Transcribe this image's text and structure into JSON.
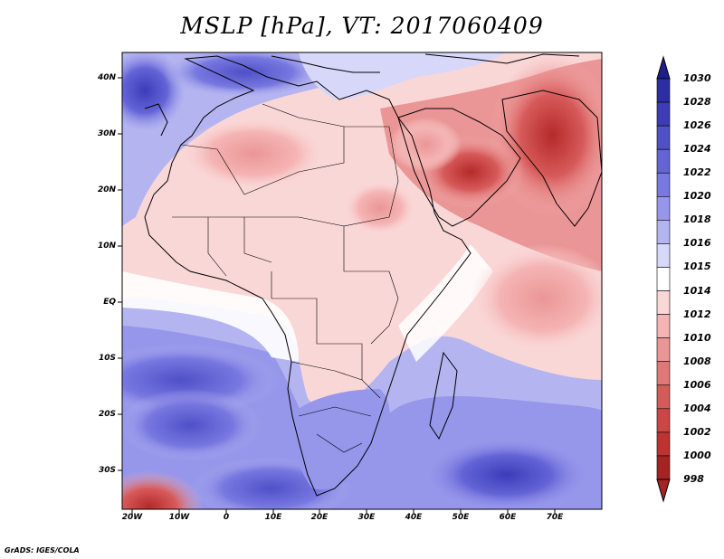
{
  "title": "MSLP [hPa], VT: 2017060409",
  "credit": "GrADS: IGES/COLA",
  "lat_labels": [
    "40N",
    "30N",
    "20N",
    "10N",
    "EQ",
    "10S",
    "20S",
    "30S"
  ],
  "lon_labels": [
    "20W",
    "10W",
    "0",
    "10E",
    "20E",
    "30E",
    "40E",
    "50E",
    "60E",
    "70E"
  ],
  "colorbar": {
    "levels": [
      "1030",
      "1028",
      "1026",
      "1024",
      "1022",
      "1020",
      "1018",
      "1016",
      "1015",
      "1014",
      "1012",
      "1010",
      "1008",
      "1006",
      "1004",
      "1002",
      "1000",
      "998"
    ],
    "colors": [
      "#1e1e8c",
      "#2d2da5",
      "#3c3cb9",
      "#5050c8",
      "#6464d7",
      "#7878e1",
      "#9696eb",
      "#b4b4f0",
      "#d7d7fa",
      "#ffffff",
      "#fad7d7",
      "#f5b4b4",
      "#eb9696",
      "#e17878",
      "#d75a5a",
      "#cd4646",
      "#be3232",
      "#a52323"
    ]
  }
}
